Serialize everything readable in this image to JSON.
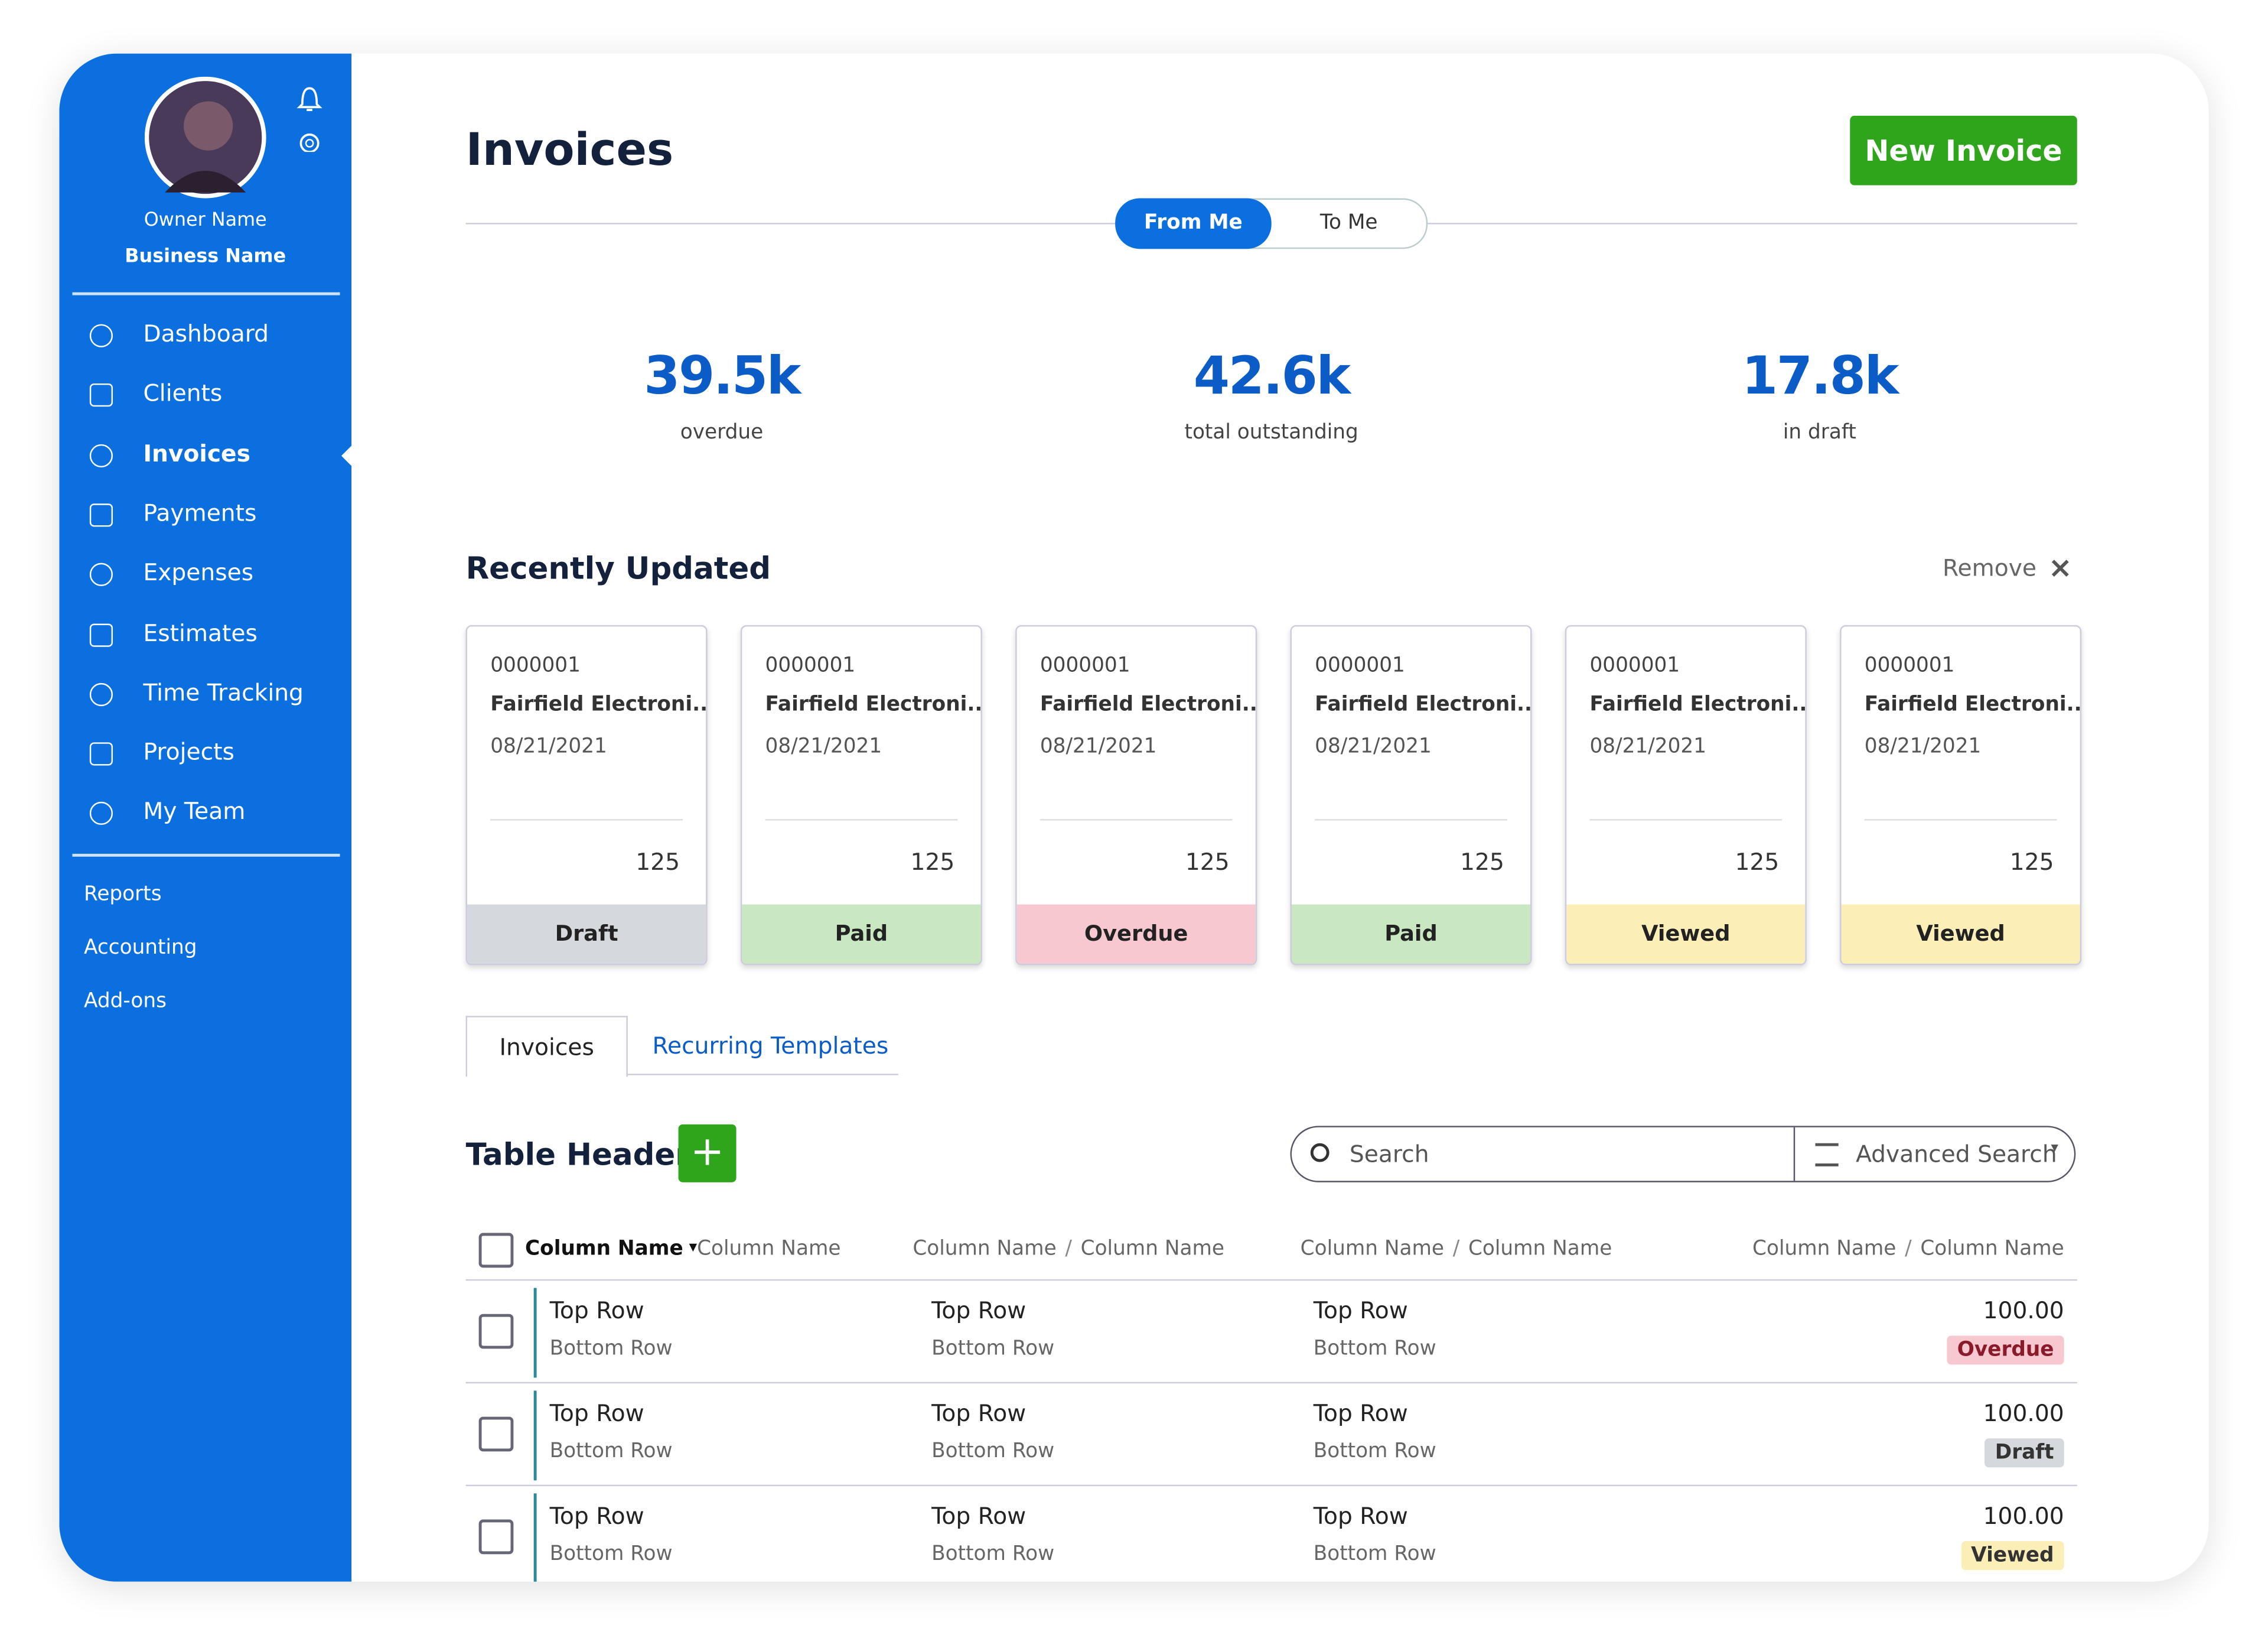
{
  "sidebar": {
    "owner_name": "Owner Name",
    "business_name": "Business Name",
    "nav": [
      "Dashboard",
      "Clients",
      "Invoices",
      "Payments",
      "Expenses",
      "Estimates",
      "Time Tracking",
      "Projects",
      "My Team"
    ],
    "secondary": [
      "Reports",
      "Accounting",
      "Add-ons"
    ]
  },
  "header": {
    "title": "Invoices",
    "new_button": "New Invoice",
    "toggle": [
      "From Me",
      "To Me"
    ]
  },
  "stats": [
    {
      "value": "39.5k",
      "label": "overdue"
    },
    {
      "value": "42.6k",
      "label": "total outstanding"
    },
    {
      "value": "17.8k",
      "label": "in draft"
    }
  ],
  "recent": {
    "title": "Recently Updated",
    "remove": "Remove",
    "cards": [
      {
        "number": "0000001",
        "client": "Fairfield Electroni...",
        "date": "08/21/2021",
        "amount": "125",
        "status": "Draft"
      },
      {
        "number": "0000001",
        "client": "Fairfield Electroni...",
        "date": "08/21/2021",
        "amount": "125",
        "status": "Paid"
      },
      {
        "number": "0000001",
        "client": "Fairfield Electroni...",
        "date": "08/21/2021",
        "amount": "125",
        "status": "Overdue"
      },
      {
        "number": "0000001",
        "client": "Fairfield Electroni...",
        "date": "08/21/2021",
        "amount": "125",
        "status": "Paid"
      },
      {
        "number": "0000001",
        "client": "Fairfield Electroni...",
        "date": "08/21/2021",
        "amount": "125",
        "status": "Viewed"
      },
      {
        "number": "0000001",
        "client": "Fairfield Electroni...",
        "date": "08/21/2021",
        "amount": "125",
        "status": "Viewed"
      }
    ]
  },
  "tabs": [
    "Invoices",
    "Recurring Templates"
  ],
  "table": {
    "title": "Table Header",
    "search": "Search",
    "advanced_search": "Advanced Search",
    "columns": [
      [
        "Column Name",
        "Column Name"
      ],
      [
        "Column Name",
        "Column Name"
      ],
      [
        "Column Name",
        "Column Name"
      ],
      [
        "Column Name",
        "Column Name"
      ]
    ],
    "rows": [
      {
        "cells": [
          {
            "top": "Top Row",
            "bottom": "Bottom Row"
          },
          {
            "top": "Top Row",
            "bottom": "Bottom Row"
          },
          {
            "top": "Top Row",
            "bottom": "Bottom Row"
          }
        ],
        "amount": "100.00",
        "status": "Overdue"
      },
      {
        "cells": [
          {
            "top": "Top Row",
            "bottom": "Bottom Row"
          },
          {
            "top": "Top Row",
            "bottom": "Bottom Row"
          },
          {
            "top": "Top Row",
            "bottom": "Bottom Row"
          }
        ],
        "amount": "100.00",
        "status": "Draft"
      },
      {
        "cells": [
          {
            "top": "Top Row",
            "bottom": "Bottom Row"
          },
          {
            "top": "Top Row",
            "bottom": "Bottom Row"
          },
          {
            "top": "Top Row",
            "bottom": "Bottom Row"
          }
        ],
        "amount": "100.00",
        "status": "Viewed"
      }
    ]
  }
}
